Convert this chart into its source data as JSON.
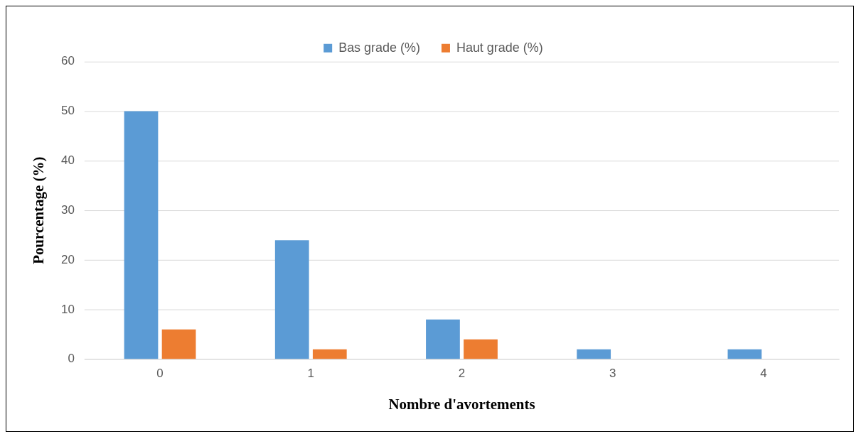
{
  "chart_data": {
    "type": "bar",
    "xlabel": "Nombre d'avortements",
    "ylabel": "Pourcentage (%)",
    "categories": [
      "0",
      "1",
      "2",
      "3",
      "4"
    ],
    "series": [
      {
        "name": "Bas grade (%)",
        "color": "#5b9bd5",
        "values": [
          50,
          24,
          8,
          2,
          2
        ]
      },
      {
        "name": "Haut grade (%)",
        "color": "#ed7d31",
        "values": [
          6,
          2,
          4,
          0,
          0
        ]
      }
    ],
    "ylim": [
      0,
      60
    ],
    "yticks": [
      0,
      10,
      20,
      30,
      40,
      50,
      60
    ],
    "grid": "y",
    "legend": "top"
  }
}
